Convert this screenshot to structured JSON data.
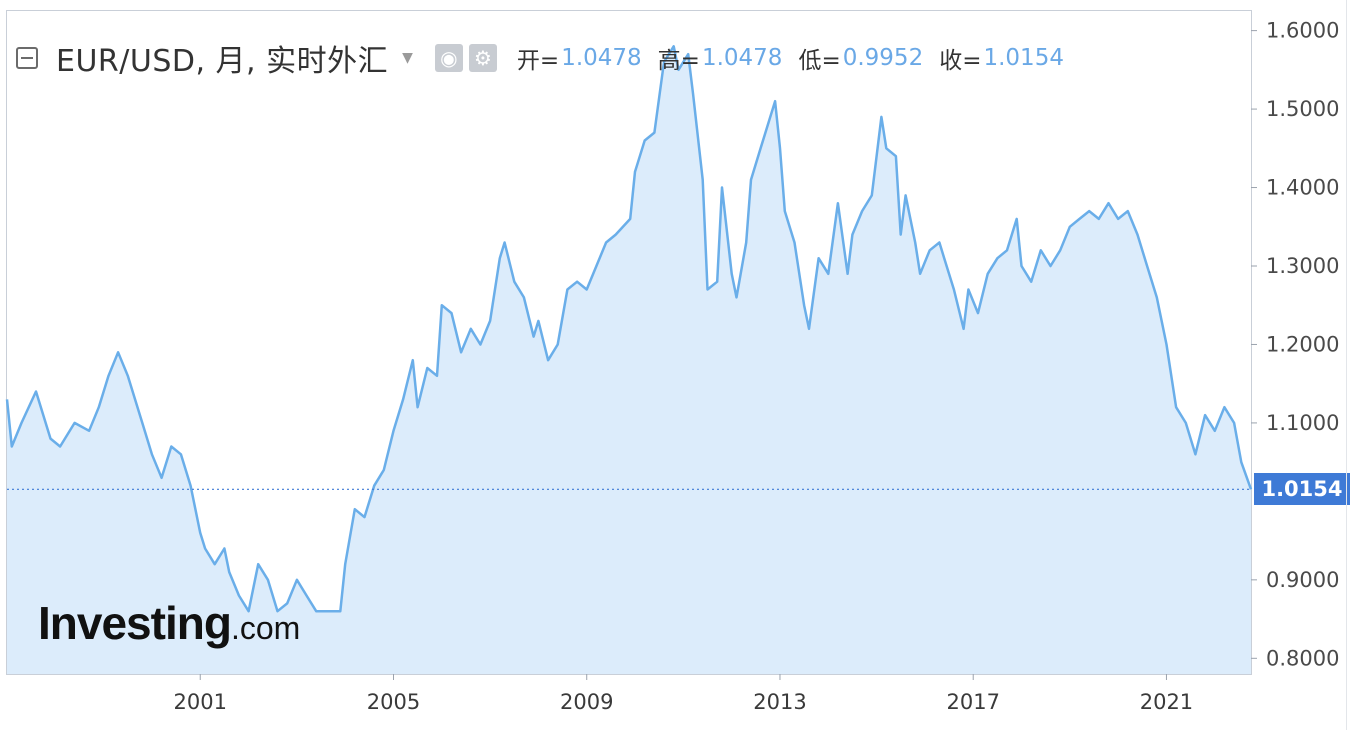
{
  "header": {
    "title": "EUR/USD, 月, 实时外汇",
    "ohlc": [
      {
        "label": "开=",
        "value": "1.0478"
      },
      {
        "label": "高=",
        "value": "1.0478"
      },
      {
        "label": "低=",
        "value": "0.9952"
      },
      {
        "label": "收=",
        "value": "1.0154"
      }
    ]
  },
  "icons": {
    "collapse": "collapse-icon",
    "dropdown": "chevron-down-icon",
    "visibility": "eye-icon",
    "settings": "gear-icon"
  },
  "logo": {
    "text": "Investing",
    "suffix": ".com"
  },
  "current_price": "1.0154",
  "colors": {
    "line": "#6aaee9",
    "area": "#dcecfb",
    "accent": "#3e7ad6"
  },
  "chart_data": {
    "type": "area",
    "interval": "monthly",
    "x_ticks": [
      "2001",
      "2005",
      "2009",
      "2013",
      "2017",
      "2021"
    ],
    "y_ticks": [
      "1.6000",
      "1.5000",
      "1.4000",
      "1.3000",
      "1.2000",
      "1.1000",
      "0.9000",
      "0.8000"
    ],
    "xlim": [
      1997.0,
      2022.75
    ],
    "ylim": [
      0.78,
      1.625
    ],
    "last_value": 1.0154,
    "reference_line": 1.0154,
    "points": [
      [
        1997.0,
        1.13
      ],
      [
        1997.1,
        1.07
      ],
      [
        1997.3,
        1.1
      ],
      [
        1997.6,
        1.14
      ],
      [
        1997.9,
        1.08
      ],
      [
        1998.1,
        1.07
      ],
      [
        1998.4,
        1.1
      ],
      [
        1998.7,
        1.09
      ],
      [
        1998.9,
        1.12
      ],
      [
        1999.1,
        1.16
      ],
      [
        1999.3,
        1.19
      ],
      [
        1999.5,
        1.16
      ],
      [
        1999.8,
        1.1
      ],
      [
        2000.0,
        1.06
      ],
      [
        2000.2,
        1.03
      ],
      [
        2000.4,
        1.07
      ],
      [
        2000.6,
        1.06
      ],
      [
        2000.8,
        1.02
      ],
      [
        2001.0,
        0.96
      ],
      [
        2001.1,
        0.94
      ],
      [
        2001.3,
        0.92
      ],
      [
        2001.5,
        0.94
      ],
      [
        2001.6,
        0.91
      ],
      [
        2001.8,
        0.88
      ],
      [
        2002.0,
        0.86
      ],
      [
        2002.2,
        0.92
      ],
      [
        2002.4,
        0.9
      ],
      [
        2002.6,
        0.86
      ],
      [
        2002.8,
        0.87
      ],
      [
        2003.0,
        0.9
      ],
      [
        2003.2,
        0.88
      ],
      [
        2003.4,
        0.86
      ],
      [
        2003.7,
        0.86
      ],
      [
        2003.9,
        0.86
      ],
      [
        2004.0,
        0.92
      ],
      [
        2004.2,
        0.99
      ],
      [
        2004.4,
        0.98
      ],
      [
        2004.6,
        1.02
      ],
      [
        2004.8,
        1.04
      ],
      [
        2005.0,
        1.09
      ],
      [
        2005.2,
        1.13
      ],
      [
        2005.4,
        1.18
      ],
      [
        2005.5,
        1.12
      ],
      [
        2005.7,
        1.17
      ],
      [
        2005.9,
        1.16
      ],
      [
        2006.0,
        1.25
      ],
      [
        2006.2,
        1.24
      ],
      [
        2006.4,
        1.19
      ],
      [
        2006.6,
        1.22
      ],
      [
        2006.8,
        1.2
      ],
      [
        2007.0,
        1.23
      ],
      [
        2007.2,
        1.31
      ],
      [
        2007.3,
        1.33
      ],
      [
        2007.5,
        1.28
      ],
      [
        2007.7,
        1.26
      ],
      [
        2007.9,
        1.21
      ],
      [
        2008.0,
        1.23
      ],
      [
        2008.2,
        1.18
      ],
      [
        2008.4,
        1.2
      ],
      [
        2008.6,
        1.27
      ],
      [
        2008.8,
        1.28
      ],
      [
        2009.0,
        1.27
      ],
      [
        2009.2,
        1.3
      ],
      [
        2009.4,
        1.33
      ],
      [
        2009.6,
        1.34
      ],
      [
        2009.9,
        1.36
      ],
      [
        2010.0,
        1.42
      ],
      [
        2010.2,
        1.46
      ],
      [
        2010.4,
        1.47
      ],
      [
        2010.6,
        1.56
      ],
      [
        2010.8,
        1.58
      ],
      [
        2010.9,
        1.55
      ],
      [
        2011.1,
        1.57
      ],
      [
        2011.2,
        1.52
      ],
      [
        2011.4,
        1.41
      ],
      [
        2011.5,
        1.27
      ],
      [
        2011.7,
        1.28
      ],
      [
        2011.8,
        1.4
      ],
      [
        2012.0,
        1.29
      ],
      [
        2012.1,
        1.26
      ],
      [
        2012.3,
        1.33
      ],
      [
        2012.4,
        1.41
      ],
      [
        2012.6,
        1.45
      ],
      [
        2012.9,
        1.51
      ],
      [
        2013.0,
        1.45
      ],
      [
        2013.1,
        1.37
      ],
      [
        2013.3,
        1.33
      ],
      [
        2013.5,
        1.25
      ],
      [
        2013.6,
        1.22
      ],
      [
        2013.8,
        1.31
      ],
      [
        2014.0,
        1.29
      ],
      [
        2014.2,
        1.38
      ],
      [
        2014.4,
        1.29
      ],
      [
        2014.5,
        1.34
      ],
      [
        2014.7,
        1.37
      ],
      [
        2014.9,
        1.39
      ],
      [
        2015.1,
        1.49
      ],
      [
        2015.2,
        1.45
      ],
      [
        2015.4,
        1.44
      ],
      [
        2015.5,
        1.34
      ],
      [
        2015.6,
        1.39
      ],
      [
        2015.8,
        1.33
      ],
      [
        2015.9,
        1.29
      ],
      [
        2016.1,
        1.32
      ],
      [
        2016.3,
        1.33
      ],
      [
        2016.4,
        1.31
      ],
      [
        2016.6,
        1.27
      ],
      [
        2016.8,
        1.22
      ],
      [
        2016.9,
        1.27
      ],
      [
        2017.1,
        1.24
      ],
      [
        2017.3,
        1.29
      ],
      [
        2017.5,
        1.31
      ],
      [
        2017.7,
        1.32
      ],
      [
        2017.9,
        1.36
      ],
      [
        2018.0,
        1.3
      ],
      [
        2018.2,
        1.28
      ],
      [
        2018.4,
        1.32
      ],
      [
        2018.6,
        1.3
      ],
      [
        2018.8,
        1.32
      ],
      [
        2019.0,
        1.35
      ],
      [
        2019.2,
        1.36
      ],
      [
        2019.4,
        1.37
      ],
      [
        2019.6,
        1.36
      ],
      [
        2019.8,
        1.38
      ],
      [
        2020.0,
        1.36
      ],
      [
        2020.2,
        1.37
      ],
      [
        2020.4,
        1.34
      ],
      [
        2020.6,
        1.3
      ],
      [
        2020.8,
        1.26
      ],
      [
        2021.0,
        1.2
      ],
      [
        2021.2,
        1.12
      ],
      [
        2021.4,
        1.1
      ],
      [
        2021.6,
        1.06
      ],
      [
        2021.8,
        1.11
      ],
      [
        2022.0,
        1.09
      ],
      [
        2022.2,
        1.12
      ],
      [
        2022.4,
        1.1
      ],
      [
        2022.55,
        1.05
      ],
      [
        2022.75,
        1.0154
      ]
    ]
  }
}
